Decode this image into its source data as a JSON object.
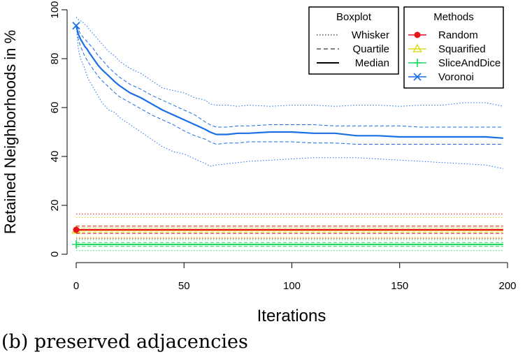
{
  "caption": "(b) preserved adjacencies",
  "chart_data": {
    "type": "line",
    "xlabel": "Iterations",
    "ylabel": "Retained Neighborhoods in %",
    "xlim": [
      -5,
      200
    ],
    "ylim": [
      0,
      100
    ],
    "xticks": [
      "0",
      "50",
      "100",
      "150",
      "200"
    ],
    "yticks": [
      "0",
      "20",
      "40",
      "60",
      "80",
      "100"
    ],
    "grid": false,
    "x": [
      0,
      1,
      2,
      3,
      4,
      5,
      6,
      8,
      10,
      12,
      15,
      18,
      20,
      25,
      30,
      35,
      40,
      45,
      50,
      55,
      60,
      62,
      65,
      70,
      75,
      80,
      90,
      100,
      110,
      120,
      130,
      140,
      150,
      160,
      170,
      180,
      190,
      198
    ],
    "legends": [
      {
        "title": "Boxplot",
        "position": "top-right",
        "entries": [
          {
            "label": "Whisker",
            "style": "dotted"
          },
          {
            "label": "Quartile",
            "style": "dashed"
          },
          {
            "label": "Median",
            "style": "solid"
          }
        ]
      },
      {
        "title": "Methods",
        "position": "top-right",
        "entries": [
          {
            "label": "Random",
            "color": "#e8121a",
            "marker": "circle"
          },
          {
            "label": "Squarified",
            "color": "#dede1a",
            "marker": "triangle"
          },
          {
            "label": "SliceAndDice",
            "color": "#1ad95e",
            "marker": "plus"
          },
          {
            "label": "Voronoi",
            "color": "#1a6ee6",
            "marker": "x"
          }
        ]
      }
    ],
    "series": [
      {
        "name": "Voronoi",
        "color": "#1a6ee6",
        "median": [
          93.5,
          90,
          88,
          86.5,
          85,
          84,
          82.5,
          80,
          77.5,
          75.5,
          73,
          70.5,
          69,
          66,
          64,
          61.5,
          59,
          57,
          55,
          53,
          51,
          50,
          49,
          49,
          49.5,
          49.5,
          50,
          50,
          49.5,
          49.5,
          48.5,
          48.5,
          48,
          48,
          48,
          48,
          48,
          47.5
        ],
        "upper_quartile": [
          93.5,
          92,
          90,
          89,
          88,
          87,
          86,
          84,
          81.5,
          79.5,
          76.5,
          74,
          72.5,
          69.5,
          67.5,
          65,
          63,
          61,
          59,
          57,
          54,
          53,
          52,
          52,
          52.5,
          52.5,
          53,
          53,
          53,
          52.5,
          52.5,
          52.5,
          52.5,
          52,
          52,
          52,
          52,
          52
        ],
        "lower_quartile": [
          93.5,
          88,
          85,
          83,
          81,
          79.5,
          78,
          75.5,
          73,
          71,
          68.5,
          66,
          64.5,
          62,
          59.5,
          57,
          55,
          53,
          50.5,
          48.5,
          47,
          46,
          45,
          45.5,
          45.5,
          46,
          46,
          46,
          45.5,
          45.5,
          45,
          45,
          45,
          45,
          45,
          45,
          45,
          45
        ],
        "upper_whisker": [
          97,
          96,
          95.5,
          95,
          94,
          93.5,
          92,
          90,
          88,
          86,
          83,
          81,
          79,
          76,
          74,
          71,
          68,
          67,
          66,
          64,
          63,
          61.5,
          61,
          61,
          60.5,
          61,
          60.5,
          61,
          61,
          60.5,
          61,
          61,
          60.5,
          61,
          61,
          62,
          62,
          60.5
        ],
        "lower_whisker": [
          93.5,
          84,
          80,
          78,
          76,
          73,
          71,
          68,
          65,
          62,
          59,
          58,
          56,
          53,
          50,
          47,
          44,
          42,
          41,
          39,
          37,
          36,
          36.5,
          37,
          37.5,
          38,
          38.5,
          39,
          39.5,
          39.5,
          39.5,
          39,
          38.5,
          38,
          37.5,
          37,
          36.5,
          35
        ]
      },
      {
        "name": "Random",
        "color": "#e8121a",
        "median": [
          10,
          10,
          10,
          10,
          10,
          10,
          10,
          10,
          10,
          10,
          10,
          10,
          10,
          10,
          10,
          10,
          10,
          10,
          10,
          10,
          10,
          10,
          10,
          10,
          10,
          10,
          10,
          10,
          10,
          10,
          10,
          10,
          10,
          10,
          10,
          10,
          10,
          10
        ],
        "upper_quartile": [
          11.5,
          11.5,
          11.5,
          11.5,
          11.5,
          11.5,
          11.5,
          11.5,
          11.5,
          11.5,
          11.5,
          11.5,
          11.5,
          11.5,
          11.5,
          11.5,
          11.5,
          11.5,
          11.5,
          11.5,
          11.5,
          11.5,
          11.5,
          11.5,
          11.5,
          11.5,
          11.5,
          11.5,
          11.5,
          11.5,
          11.5,
          11.5,
          11.5,
          11.5,
          11.5,
          11.5,
          11.5,
          11.5
        ],
        "lower_quartile": [
          8.5,
          8.5,
          8.5,
          8.5,
          8.5,
          8.5,
          8.5,
          8.5,
          8.5,
          8.5,
          8.5,
          8.5,
          8.5,
          8.5,
          8.5,
          8.5,
          8.5,
          8.5,
          8.5,
          8.5,
          8.5,
          8.5,
          8.5,
          8.5,
          8.5,
          8.5,
          8.5,
          8.5,
          8.5,
          8.5,
          8.5,
          8.5,
          8.5,
          8.5,
          8.5,
          8.5,
          8.5,
          8.5
        ],
        "upper_whisker": [
          16.5,
          16.5,
          16.5,
          16.5,
          16.5,
          16.5,
          16.5,
          16.5,
          16.5,
          16.5,
          16.5,
          16.5,
          16.5,
          16.5,
          16.5,
          16.5,
          16.5,
          16.5,
          16.5,
          16.5,
          16.5,
          16.5,
          16.5,
          16.5,
          16.5,
          16.5,
          16.5,
          16.5,
          16.5,
          16.5,
          16.5,
          16.5,
          16.5,
          16.5,
          16.5,
          16.5,
          16.5,
          16.5
        ],
        "lower_whisker": [
          6.5,
          6.5,
          6.5,
          6.5,
          6.5,
          6.5,
          6.5,
          6.5,
          6.5,
          6.5,
          6.5,
          6.5,
          6.5,
          6.5,
          6.5,
          6.5,
          6.5,
          6.5,
          6.5,
          6.5,
          6.5,
          6.5,
          6.5,
          6.5,
          6.5,
          6.5,
          6.5,
          6.5,
          6.5,
          6.5,
          6.5,
          6.5,
          6.5,
          6.5,
          6.5,
          6.5,
          6.5,
          6.5
        ]
      },
      {
        "name": "Squarified",
        "color": "#dede1a",
        "median": [
          9.8,
          9.8,
          9.8,
          9.8,
          9.8,
          9.8,
          9.8,
          9.8,
          9.8,
          9.8,
          9.8,
          9.8,
          9.8,
          9.8,
          9.8,
          9.8,
          9.8,
          9.8,
          9.8,
          9.8,
          9.8,
          9.8,
          9.8,
          9.8,
          9.8,
          9.8,
          9.8,
          9.8,
          9.8,
          9.8,
          9.8,
          9.8,
          9.8,
          9.8,
          9.8,
          9.8,
          9.8,
          9.8
        ],
        "upper_quartile": [
          10.8,
          10.8,
          10.8,
          10.8,
          10.8,
          10.8,
          10.8,
          10.8,
          10.8,
          10.8,
          10.8,
          10.8,
          10.8,
          10.8,
          10.8,
          10.8,
          10.8,
          10.8,
          10.8,
          10.8,
          10.8,
          10.8,
          10.8,
          10.8,
          10.8,
          10.8,
          10.8,
          10.8,
          10.8,
          10.8,
          10.8,
          10.8,
          10.8,
          10.8,
          10.8,
          10.8,
          10.8,
          10.8
        ],
        "lower_quartile": [
          9,
          9,
          9,
          9,
          9,
          9,
          9,
          9,
          9,
          9,
          9,
          9,
          9,
          9,
          9,
          9,
          9,
          9,
          9,
          9,
          9,
          9,
          9,
          9,
          9,
          9,
          9,
          9,
          9,
          9,
          9,
          9,
          9,
          9,
          9,
          9,
          9,
          9
        ],
        "upper_whisker": [
          15,
          15,
          15,
          15,
          15,
          15,
          15,
          15,
          15,
          15,
          15,
          15,
          15,
          15,
          15,
          15,
          15,
          15,
          15,
          15,
          15,
          15,
          15,
          15,
          15,
          15,
          15,
          15,
          15,
          15,
          15,
          15,
          15,
          15,
          15,
          15,
          15,
          15
        ],
        "lower_whisker": [
          7,
          7,
          7,
          7,
          7,
          7,
          7,
          7,
          7,
          7,
          7,
          7,
          7,
          7,
          7,
          7,
          7,
          7,
          7,
          7,
          7,
          7,
          7,
          7,
          7,
          7,
          7,
          7,
          7,
          7,
          7,
          7,
          7,
          7,
          7,
          7,
          7,
          7
        ]
      },
      {
        "name": "SliceAndDice",
        "color": "#1ad95e",
        "median": [
          4,
          4,
          4,
          4,
          4,
          4,
          4,
          4,
          4,
          4,
          4,
          4,
          4,
          4,
          4,
          4,
          4,
          4,
          4,
          4,
          4,
          4,
          4,
          4,
          4,
          4,
          4,
          4,
          4,
          4,
          4,
          4,
          4,
          4,
          4,
          4,
          4,
          4
        ],
        "upper_quartile": [
          4.8,
          4.8,
          4.8,
          4.8,
          4.8,
          4.8,
          4.8,
          4.8,
          4.8,
          4.8,
          4.8,
          4.8,
          4.8,
          4.8,
          4.8,
          4.8,
          4.8,
          4.8,
          4.8,
          4.8,
          4.8,
          4.8,
          4.8,
          4.8,
          4.8,
          4.8,
          4.8,
          4.8,
          4.8,
          4.8,
          4.8,
          4.8,
          4.8,
          4.8,
          4.8,
          4.8,
          4.8,
          4.8
        ],
        "lower_quartile": [
          3.2,
          3.2,
          3.2,
          3.2,
          3.2,
          3.2,
          3.2,
          3.2,
          3.2,
          3.2,
          3.2,
          3.2,
          3.2,
          3.2,
          3.2,
          3.2,
          3.2,
          3.2,
          3.2,
          3.2,
          3.2,
          3.2,
          3.2,
          3.2,
          3.2,
          3.2,
          3.2,
          3.2,
          3.2,
          3.2,
          3.2,
          3.2,
          3.2,
          3.2,
          3.2,
          3.2,
          3.2,
          3.2
        ],
        "upper_whisker": [
          6,
          6,
          6,
          6,
          6,
          6,
          6,
          6,
          6,
          6,
          6,
          6,
          6,
          6,
          6,
          6,
          6,
          6,
          6,
          6,
          6,
          6,
          6,
          6,
          6,
          6,
          6,
          6,
          6,
          6,
          6,
          6,
          6,
          6,
          6,
          6,
          6,
          6
        ],
        "lower_whisker": [
          1.5,
          1.5,
          1.5,
          1.5,
          1.5,
          1.5,
          1.5,
          1.5,
          1.5,
          1.5,
          1.5,
          1.5,
          1.5,
          1.5,
          1.5,
          1.5,
          1.5,
          1.5,
          1.5,
          1.5,
          1.5,
          1.5,
          1.5,
          1.5,
          1.5,
          1.5,
          1.5,
          1.5,
          1.5,
          1.5,
          1.5,
          1.5,
          1.5,
          1.5,
          1.5,
          1.5,
          1.5,
          1.5
        ]
      }
    ]
  }
}
